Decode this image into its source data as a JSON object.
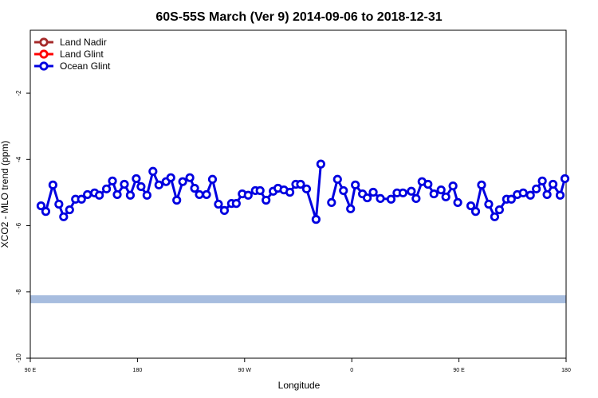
{
  "chart_data": {
    "type": "line",
    "title": "60S-55S March (Ver 9)   2014-09-06 to 2018-12-31",
    "x_label": "Longitude",
    "y_label": "XCO2 - MLO trend (ppm)",
    "xlim": [
      90,
      540
    ],
    "xticks": [
      {
        "value": 90,
        "label": "90 E"
      },
      {
        "value": 180,
        "label": "180"
      },
      {
        "value": 270,
        "label": "90 W"
      },
      {
        "value": 360,
        "label": "0"
      },
      {
        "value": 450,
        "label": "90 E"
      },
      {
        "value": 540,
        "label": "180"
      }
    ],
    "ylim": [
      -10,
      -0.1
    ],
    "yticks": [
      -10,
      -8,
      -6,
      -4,
      -2
    ],
    "legend_position": "top-left",
    "reference_band": {
      "value": -8.22,
      "color": "#a7bddf"
    },
    "x": [
      99,
      103,
      109,
      114,
      118,
      123,
      128,
      133,
      138,
      144,
      148,
      154,
      159,
      163,
      169,
      174,
      179,
      183,
      188,
      193,
      198,
      204,
      208,
      213,
      218,
      224,
      228,
      232,
      238,
      243,
      248,
      253,
      259,
      263,
      268,
      273,
      279,
      283,
      288,
      294,
      298,
      303,
      308,
      313,
      317,
      322,
      330,
      334,
      338,
      343,
      348,
      353,
      359,
      363,
      369,
      373,
      378,
      384,
      393,
      398,
      403,
      410,
      414,
      419,
      424,
      429,
      435,
      439,
      445,
      449,
      455,
      460,
      464,
      469,
      475,
      480,
      484,
      490,
      494,
      499,
      504,
      510,
      515,
      520,
      524,
      529,
      535,
      539
    ],
    "series": [
      {
        "name": "Land Nadir",
        "color": "#a52a2a"
      },
      {
        "name": "Land Glint",
        "color": "#ff0000"
      },
      {
        "name": "Ocean Glint",
        "color": "#0000e0",
        "values": [
          -5.4,
          -5.57,
          -4.77,
          -5.35,
          -5.73,
          -5.52,
          -5.2,
          -5.2,
          -5.06,
          -5.01,
          -5.08,
          -4.89,
          -4.65,
          -5.06,
          -4.75,
          -5.08,
          -4.58,
          -4.82,
          -5.08,
          -4.36,
          -4.77,
          -4.67,
          -4.55,
          -5.23,
          -4.67,
          -4.55,
          -4.87,
          -5.06,
          -5.06,
          -4.6,
          -5.35,
          -5.54,
          -5.33,
          -5.33,
          -5.04,
          -5.08,
          -4.94,
          -4.94,
          -5.23,
          -4.96,
          -4.87,
          -4.92,
          -4.99,
          -4.75,
          -4.75,
          -4.89,
          -5.81,
          -4.14,
          null,
          -5.3,
          -4.6,
          -4.94,
          -5.49,
          -4.77,
          -5.04,
          -5.16,
          -4.99,
          -5.18,
          -5.2,
          -5.01,
          -5.01,
          -4.96,
          -5.18,
          -4.67,
          -4.75,
          -5.04,
          -4.92,
          -5.13,
          -4.8,
          -5.3,
          null,
          -5.4,
          -5.57,
          -4.77,
          -5.35,
          -5.73,
          -5.52,
          -5.2,
          -5.2,
          -5.06,
          -5.01,
          -5.08,
          -4.89,
          -4.65,
          -5.06,
          -4.75,
          -5.08,
          -4.58
        ]
      }
    ]
  }
}
